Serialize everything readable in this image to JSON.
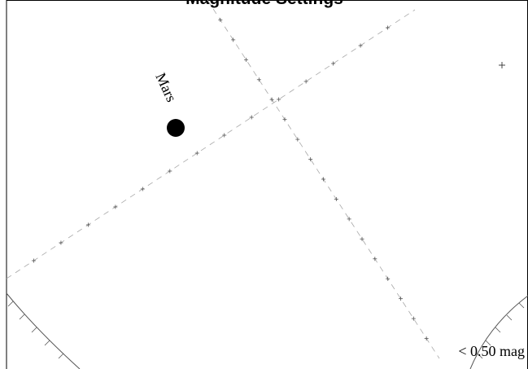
{
  "chart": {
    "title": "Magnitude Settings",
    "planet": {
      "name": "Mars"
    },
    "magnitude_label": "< 0.50 mag"
  }
}
